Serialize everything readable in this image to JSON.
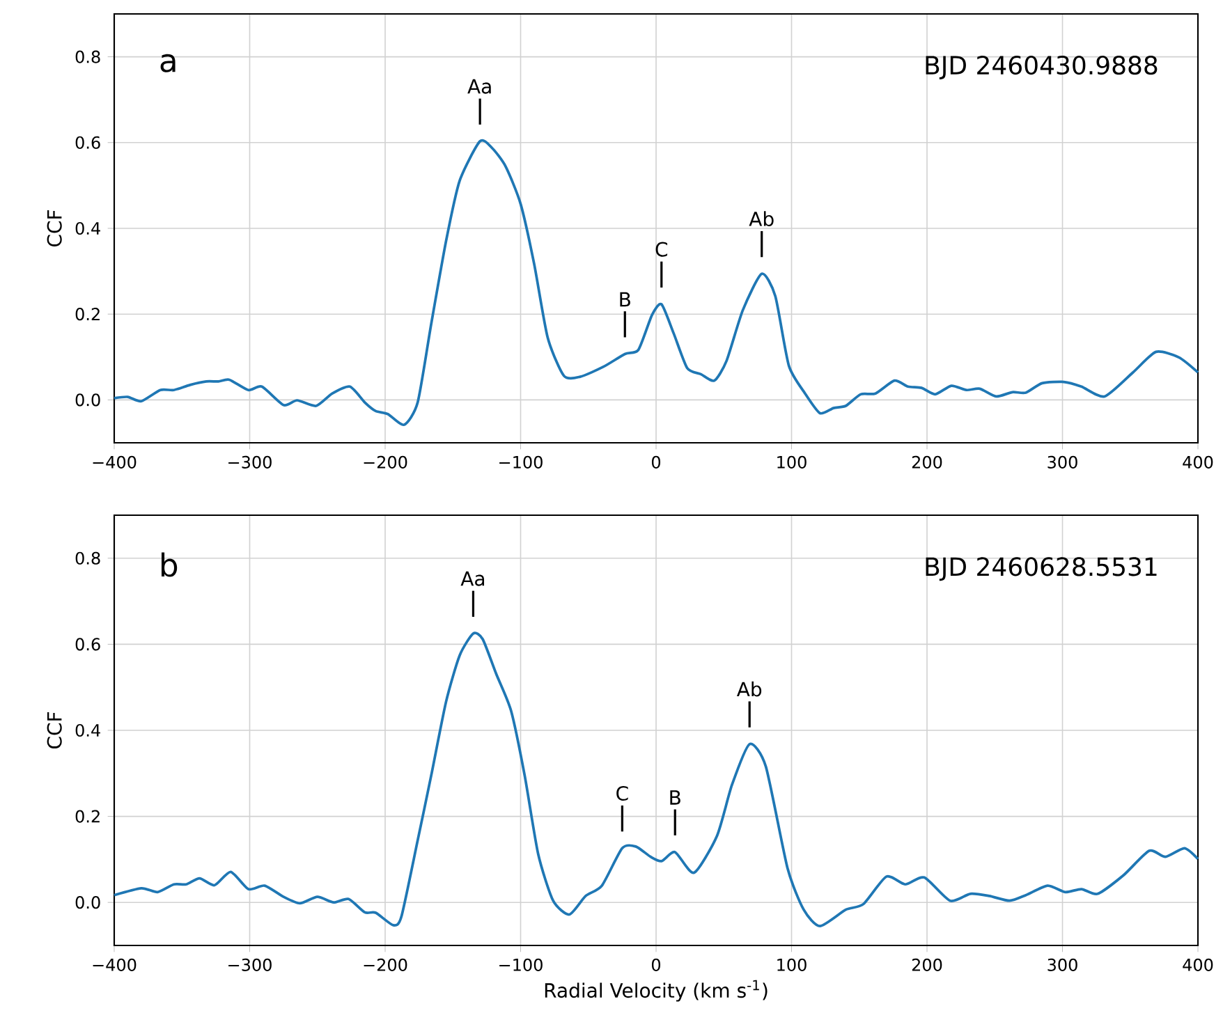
{
  "chart_data": [
    {
      "type": "line",
      "title": "a",
      "subtitle": "BJD 2460430.9888",
      "ylabel": "CCF",
      "xlim": [
        -400,
        400
      ],
      "ylim": [
        -0.1,
        0.9
      ],
      "grid": true,
      "xticks": [
        {
          "value": -400,
          "label": "−400"
        },
        {
          "value": -300,
          "label": "−300"
        },
        {
          "value": -200,
          "label": "−200"
        },
        {
          "value": -100,
          "label": "−100"
        },
        0,
        100,
        200,
        300,
        400
      ],
      "yticks": [
        {
          "value": 0,
          "label": "0.0"
        },
        {
          "value": 0.2,
          "label": "0.2"
        },
        {
          "value": 0.4,
          "label": "0.4"
        },
        {
          "value": 0.6,
          "label": "0.6"
        },
        {
          "value": 0.8,
          "label": "0.8"
        }
      ],
      "annotations": [
        {
          "text": "Aa",
          "x": -130,
          "y": 0.603
        },
        {
          "text": "B",
          "x": -23,
          "y": 0.107
        },
        {
          "text": "C",
          "x": 4,
          "y": 0.223
        },
        {
          "text": "Ab",
          "x": 78,
          "y": 0.294
        }
      ],
      "series": [
        {
          "color": "#1f77b4",
          "x": [
            -400,
            -390,
            -380,
            -366,
            -356,
            -344,
            -332,
            -323,
            -315,
            -301,
            -291,
            -275,
            -265,
            -251,
            -239,
            -226,
            -215,
            -207,
            -198,
            -186,
            -176,
            -166,
            -155,
            -145,
            -130,
            -121,
            -111,
            -100,
            -90,
            -80,
            -68,
            -56,
            -39,
            -23,
            -13,
            -3,
            4,
            13,
            23,
            33,
            43,
            52,
            64,
            78,
            88,
            98,
            110,
            121,
            131,
            140,
            151,
            162,
            176,
            186,
            196,
            206,
            218,
            229,
            239,
            251,
            263,
            273,
            285,
            301,
            314,
            331,
            352,
            369,
            386,
            400
          ],
          "values": [
            0.004,
            0.007,
            -0.003,
            0.023,
            0.023,
            0.035,
            0.043,
            0.043,
            0.047,
            0.023,
            0.031,
            -0.012,
            -0.001,
            -0.014,
            0.015,
            0.031,
            -0.006,
            -0.026,
            -0.033,
            -0.058,
            -0.006,
            0.177,
            0.371,
            0.511,
            0.603,
            0.587,
            0.544,
            0.457,
            0.317,
            0.145,
            0.056,
            0.054,
            0.077,
            0.107,
            0.117,
            0.198,
            0.223,
            0.155,
            0.074,
            0.06,
            0.045,
            0.091,
            0.209,
            0.294,
            0.242,
            0.08,
            0.015,
            -0.031,
            -0.019,
            -0.014,
            0.013,
            0.015,
            0.045,
            0.031,
            0.028,
            0.013,
            0.033,
            0.023,
            0.026,
            0.008,
            0.018,
            0.017,
            0.039,
            0.042,
            0.031,
            0.008,
            0.064,
            0.112,
            0.099,
            0.064
          ]
        }
      ]
    },
    {
      "type": "line",
      "title": "b",
      "subtitle": "BJD 2460628.5531",
      "ylabel": "CCF",
      "xlabel": "Radial Velocity (km s$^{-1}$)",
      "xlim": [
        -400,
        400
      ],
      "ylim": [
        -0.1,
        0.9
      ],
      "grid": true,
      "xticks": [
        {
          "value": -400,
          "label": "−400"
        },
        {
          "value": -300,
          "label": "−300"
        },
        {
          "value": -200,
          "label": "−200"
        },
        {
          "value": -100,
          "label": "−100"
        },
        0,
        100,
        200,
        300,
        400
      ],
      "yticks": [
        {
          "value": 0,
          "label": "0.0"
        },
        {
          "value": 0.2,
          "label": "0.2"
        },
        {
          "value": 0.4,
          "label": "0.4"
        },
        {
          "value": 0.6,
          "label": "0.6"
        },
        {
          "value": 0.8,
          "label": "0.8"
        }
      ],
      "annotations": [
        {
          "text": "Aa",
          "x": -135,
          "y": 0.625
        },
        {
          "text": "C",
          "x": -25,
          "y": 0.126
        },
        {
          "text": "B",
          "x": 14,
          "y": 0.117
        },
        {
          "text": "Ab",
          "x": 69,
          "y": 0.368
        }
      ],
      "series": [
        {
          "color": "#1f77b4",
          "x": [
            -400,
            -380,
            -368,
            -356,
            -347,
            -337,
            -326,
            -314,
            -301,
            -289,
            -275,
            -263,
            -250,
            -238,
            -227,
            -215,
            -207,
            -194,
            -188,
            -176,
            -166,
            -155,
            -145,
            -135,
            -128,
            -118,
            -107,
            -97,
            -87,
            -76,
            -64,
            -52,
            -40,
            -25,
            -15,
            -4,
            4,
            14,
            28,
            45,
            56,
            69,
            81,
            97,
            109,
            121,
            140,
            153,
            170,
            184,
            198,
            217,
            232,
            246,
            261,
            273,
            289,
            302,
            314,
            326,
            345,
            364,
            376,
            390,
            400
          ],
          "values": [
            0.017,
            0.033,
            0.024,
            0.042,
            0.042,
            0.056,
            0.04,
            0.071,
            0.031,
            0.039,
            0.013,
            -0.002,
            0.013,
            0.0,
            0.008,
            -0.023,
            -0.024,
            -0.053,
            -0.033,
            0.144,
            0.295,
            0.467,
            0.574,
            0.625,
            0.612,
            0.531,
            0.445,
            0.295,
            0.112,
            0.004,
            -0.028,
            0.015,
            0.039,
            0.126,
            0.13,
            0.106,
            0.096,
            0.117,
            0.069,
            0.155,
            0.273,
            0.368,
            0.316,
            0.08,
            -0.017,
            -0.055,
            -0.017,
            -0.004,
            0.06,
            0.042,
            0.058,
            0.004,
            0.02,
            0.015,
            0.004,
            0.017,
            0.039,
            0.024,
            0.031,
            0.02,
            0.063,
            0.12,
            0.106,
            0.126,
            0.101
          ]
        }
      ]
    }
  ]
}
